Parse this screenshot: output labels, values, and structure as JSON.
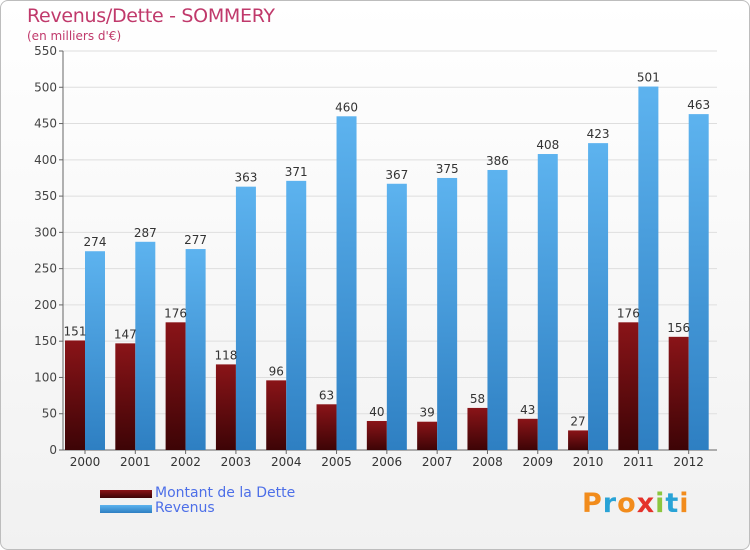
{
  "chart_data": {
    "type": "bar",
    "title": "Revenus/Dette - SOMMERY",
    "subtitle": "(en milliers d'€)",
    "categories": [
      "2000",
      "2001",
      "2002",
      "2003",
      "2004",
      "2005",
      "2006",
      "2007",
      "2008",
      "2009",
      "2010",
      "2011",
      "2012"
    ],
    "series": [
      {
        "name": "Montant de la Dette",
        "color": "#7a0e12",
        "values": [
          151,
          147,
          176,
          118,
          96,
          63,
          40,
          39,
          58,
          43,
          27,
          176,
          156
        ]
      },
      {
        "name": "Revenus",
        "color": "#4aa6e6",
        "values": [
          274,
          287,
          277,
          363,
          371,
          460,
          367,
          375,
          386,
          408,
          423,
          501,
          463
        ]
      }
    ],
    "yticks": [
      0,
      50,
      100,
      150,
      200,
      250,
      300,
      350,
      400,
      450,
      500,
      550
    ],
    "ylim": [
      0,
      550
    ],
    "grid": true,
    "legend_position": "bottom-left"
  },
  "logo": {
    "letters": [
      {
        "ch": "P",
        "color": "#f28c1c"
      },
      {
        "ch": "r",
        "color": "#29a3d6"
      },
      {
        "ch": "o",
        "color": "#f28c1c"
      },
      {
        "ch": "x",
        "color": "#e4322b"
      },
      {
        "ch": "i",
        "color": "#8cc63f"
      },
      {
        "ch": "t",
        "color": "#29a3d6"
      },
      {
        "ch": "i",
        "color": "#f28c1c"
      }
    ]
  }
}
